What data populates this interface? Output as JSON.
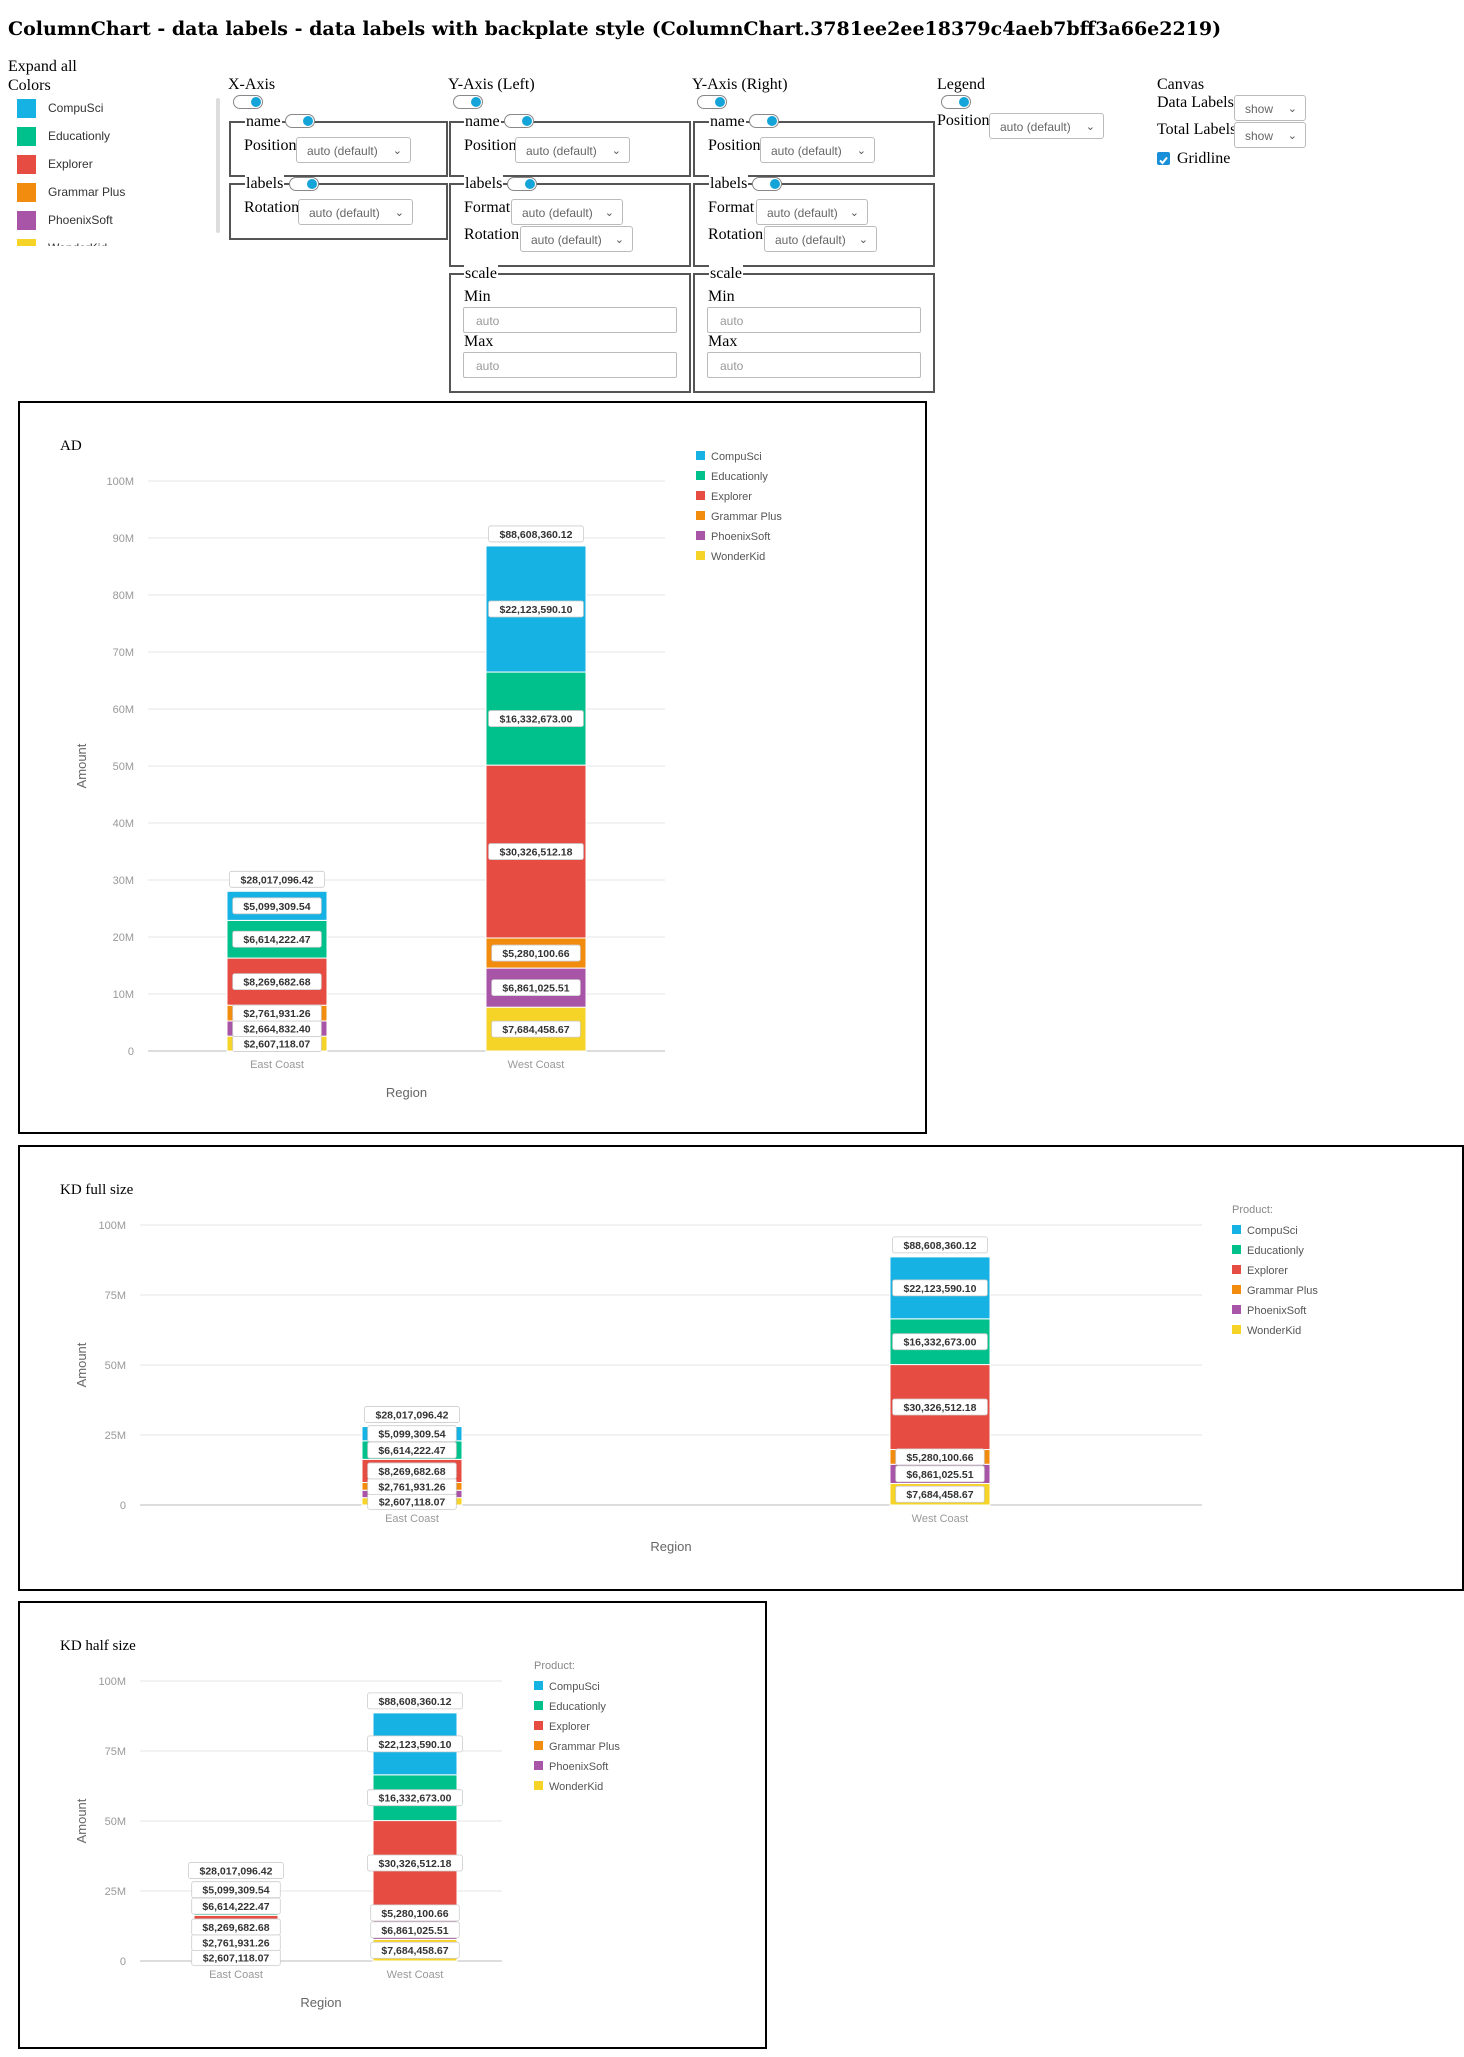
{
  "page_title": "ColumnChart - data labels - data labels with backplate style (ColumnChart.3781ee2ee18379c4aeb7bff3a66e2219)",
  "controls": {
    "expand_all": "Expand all",
    "colors_title": "Colors",
    "colors": [
      {
        "name": "CompuSci",
        "color": "#15b2e3"
      },
      {
        "name": "Educationly",
        "color": "#00c18c"
      },
      {
        "name": "Explorer",
        "color": "#e64c41"
      },
      {
        "name": "Grammar Plus",
        "color": "#f28c0f"
      },
      {
        "name": "PhoenixSoft",
        "color": "#a855a8"
      },
      {
        "name": "WonderKid",
        "color": "#f5d327"
      }
    ],
    "x_axis": {
      "title": "X-Axis",
      "name_legend": "name",
      "position_label": "Position",
      "position_value": "auto (default)",
      "labels_legend": "labels",
      "rotation_label": "Rotation",
      "rotation_value": "auto (default)"
    },
    "y_left": {
      "title": "Y-Axis (Left)",
      "name_legend": "name",
      "position_label": "Position",
      "position_value": "auto (default)",
      "labels_legend": "labels",
      "format_label": "Format",
      "format_value": "auto (default)",
      "rotation_label": "Rotation",
      "rotation_value": "auto (default)",
      "scale_legend": "scale",
      "min_label": "Min",
      "min_placeholder": "auto",
      "max_label": "Max",
      "max_placeholder": "auto"
    },
    "y_right": {
      "title": "Y-Axis (Right)",
      "name_legend": "name",
      "position_label": "Position",
      "position_value": "auto (default)",
      "labels_legend": "labels",
      "format_label": "Format",
      "format_value": "auto (default)",
      "rotation_label": "Rotation",
      "rotation_value": "auto (default)",
      "scale_legend": "scale",
      "min_label": "Min",
      "min_placeholder": "auto",
      "max_label": "Max",
      "max_placeholder": "auto"
    },
    "legend": {
      "title": "Legend",
      "position_label": "Position",
      "position_value": "auto (default)"
    },
    "canvas": {
      "title": "Canvas",
      "data_labels_label": "Data Labels",
      "data_labels_value": "show",
      "total_labels_label": "Total Labels",
      "total_labels_value": "show",
      "gridline_label": "Gridline",
      "gridline_checked": true
    }
  },
  "chart_data": [
    {
      "type": "bar",
      "stacked": true,
      "title": "AD",
      "xlabel": "Region",
      "ylabel": "Amount",
      "categories": [
        "East Coast",
        "West Coast"
      ],
      "ylim": [
        0,
        100000000
      ],
      "yticks": [
        "0",
        "10M",
        "20M",
        "30M",
        "40M",
        "50M",
        "60M",
        "70M",
        "80M",
        "90M",
        "100M"
      ],
      "legend_title": "",
      "series": [
        {
          "name": "WonderKid",
          "color": "#f5d327",
          "values": [
            2607118.07,
            7684458.67
          ],
          "labels": [
            "$2,607,118.07",
            "$7,684,458.67"
          ]
        },
        {
          "name": "PhoenixSoft",
          "color": "#a855a8",
          "values": [
            2664832.4,
            6861025.51
          ],
          "labels": [
            "$2,664,832.40",
            "$6,861,025.51"
          ]
        },
        {
          "name": "Grammar Plus",
          "color": "#f28c0f",
          "values": [
            2761931.26,
            5280100.66
          ],
          "labels": [
            "$2,761,931.26",
            "$5,280,100.66"
          ]
        },
        {
          "name": "Explorer",
          "color": "#e64c41",
          "values": [
            8269682.68,
            30326512.18
          ],
          "labels": [
            "$8,269,682.68",
            "$30,326,512.18"
          ]
        },
        {
          "name": "Educationly",
          "color": "#00c18c",
          "values": [
            6614222.47,
            16332673.0
          ],
          "labels": [
            "$6,614,222.47",
            "$16,332,673.00"
          ]
        },
        {
          "name": "CompuSci",
          "color": "#15b2e3",
          "values": [
            5099309.54,
            22123590.1
          ],
          "labels": [
            "$5,099,309.54",
            "$22,123,590.10"
          ]
        }
      ],
      "totals": [
        "$28,017,096.42",
        "$88,608,360.12"
      ]
    },
    {
      "type": "bar",
      "stacked": true,
      "title": "KD full size",
      "xlabel": "Region",
      "ylabel": "Amount",
      "categories": [
        "East Coast",
        "West Coast"
      ],
      "ylim": [
        0,
        100000000
      ],
      "yticks": [
        "0",
        "25M",
        "50M",
        "75M",
        "100M"
      ],
      "legend_title": "Product:",
      "series": [
        {
          "name": "WonderKid",
          "color": "#f5d327",
          "values": [
            2607118.07,
            7684458.67
          ],
          "labels": [
            "$2,607,118.07",
            "$7,684,458.67"
          ]
        },
        {
          "name": "PhoenixSoft",
          "color": "#a855a8",
          "values": [
            2664832.4,
            6861025.51
          ],
          "labels": [
            "",
            "$6,861,025.51"
          ]
        },
        {
          "name": "Grammar Plus",
          "color": "#f28c0f",
          "values": [
            2761931.26,
            5280100.66
          ],
          "labels": [
            "$2,761,931.26",
            "$5,280,100.66"
          ]
        },
        {
          "name": "Explorer",
          "color": "#e64c41",
          "values": [
            8269682.68,
            30326512.18
          ],
          "labels": [
            "$8,269,682.68",
            "$30,326,512.18"
          ]
        },
        {
          "name": "Educationly",
          "color": "#00c18c",
          "values": [
            6614222.47,
            16332673.0
          ],
          "labels": [
            "$6,614,222.47",
            "$16,332,673.00"
          ]
        },
        {
          "name": "CompuSci",
          "color": "#15b2e3",
          "values": [
            5099309.54,
            22123590.1
          ],
          "labels": [
            "$5,099,309.54",
            "$22,123,590.10"
          ]
        }
      ],
      "totals": [
        "$28,017,096.42",
        "$88,608,360.12"
      ]
    },
    {
      "type": "bar",
      "stacked": true,
      "title": "KD half size",
      "xlabel": "Region",
      "ylabel": "Amount",
      "categories": [
        "East Coast",
        "West Coast"
      ],
      "ylim": [
        0,
        100000000
      ],
      "yticks": [
        "0",
        "25M",
        "50M",
        "75M",
        "100M"
      ],
      "legend_title": "Product:",
      "series": [
        {
          "name": "WonderKid",
          "color": "#f5d327",
          "values": [
            2607118.07,
            7684458.67
          ],
          "labels": [
            "$2,607,118.07",
            "$7,684,458.67"
          ]
        },
        {
          "name": "PhoenixSoft",
          "color": "#a855a8",
          "values": [
            2664832.4,
            6861025.51
          ],
          "labels": [
            "",
            "$6,861,025.51"
          ]
        },
        {
          "name": "Grammar Plus",
          "color": "#f28c0f",
          "values": [
            2761931.26,
            5280100.66
          ],
          "labels": [
            "$2,761,931.26",
            "$5,280,100.66"
          ]
        },
        {
          "name": "Explorer",
          "color": "#e64c41",
          "values": [
            8269682.68,
            30326512.18
          ],
          "labels": [
            "$8,269,682.68",
            "$30,326,512.18"
          ]
        },
        {
          "name": "Educationly",
          "color": "#00c18c",
          "values": [
            6614222.47,
            16332673.0
          ],
          "labels": [
            "$6,614,222.47",
            "$16,332,673.00"
          ]
        },
        {
          "name": "CompuSci",
          "color": "#15b2e3",
          "values": [
            5099309.54,
            22123590.1
          ],
          "labels": [
            "$5,099,309.54",
            "$22,123,590.10"
          ]
        }
      ],
      "totals": [
        "$28,017,096.42",
        "$88,608,360.12"
      ]
    }
  ]
}
